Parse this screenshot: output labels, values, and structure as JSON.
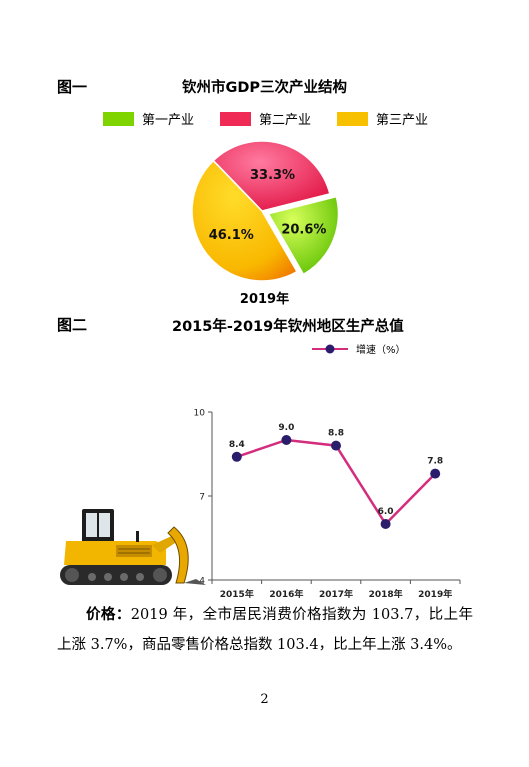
{
  "figure1": {
    "label": "图一",
    "title": "钦州市GDP三次产业结构",
    "year": "2019年",
    "legend": [
      {
        "name": "第一产业",
        "color": "#7fd400"
      },
      {
        "name": "第二产业",
        "color": "#ee2a55"
      },
      {
        "name": "第三产业",
        "color": "#f7c000"
      }
    ]
  },
  "figure2": {
    "label": "图二",
    "title": "2015年-2019年钦州地区生产总值",
    "legend_label": "增速（%）",
    "line_color": "#d42d7d",
    "marker_color": "#2b1d6b",
    "illustration": "bulldozer-illustration"
  },
  "chart_data": [
    {
      "type": "pie",
      "title": "钦州市GDP三次产业结构",
      "xlabel": "2019年",
      "categories": [
        "第一产业",
        "第二产业",
        "第三产业"
      ],
      "values": [
        20.6,
        33.3,
        46.1
      ],
      "labels": [
        "20.6%",
        "33.3%",
        "46.1%"
      ],
      "colors": [
        "#7fd400",
        "#ee2a55",
        "#f7c000"
      ],
      "legend": "top"
    },
    {
      "type": "line",
      "title": "2015年-2019年钦州地区生产总值",
      "series": [
        {
          "name": "增速（%）",
          "values": [
            8.4,
            9.0,
            8.8,
            6.0,
            7.8
          ]
        }
      ],
      "categories": [
        "2015年",
        "2016年",
        "2017年",
        "2018年",
        "2019年"
      ],
      "data_labels": [
        "8.4",
        "9.0",
        "8.8",
        "6.0",
        "7.8"
      ],
      "ylim": [
        4,
        10
      ],
      "yticks": [
        "4",
        "7",
        "10"
      ],
      "grid": false,
      "legend": "top-right"
    }
  ],
  "body": {
    "bold_lead": "价格：",
    "text": "2019 年，全市居民消费价格指数为 103.7，比上年上涨 3.7%，商品零售价格总指数 103.4，比上年上涨 3.4%。"
  },
  "page_number": "2"
}
